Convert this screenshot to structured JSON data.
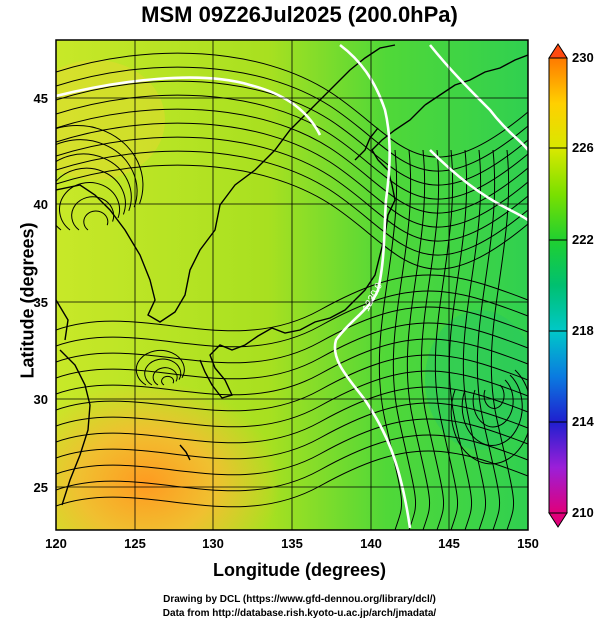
{
  "title": "MSM 09Z26Jul2025 (200.0hPa)",
  "x_axis": {
    "label": "Longitude (degrees)",
    "ticks": [
      "120",
      "125",
      "130",
      "135",
      "140",
      "145",
      "150"
    ],
    "range": [
      120,
      150
    ]
  },
  "y_axis": {
    "label": "Latitude  (degrees)",
    "ticks": [
      "25",
      "30",
      "35",
      "40",
      "45"
    ],
    "range": [
      22.4,
      47.6
    ]
  },
  "colorbar": {
    "ticks": [
      "230",
      "226",
      "222",
      "218",
      "214",
      "210"
    ],
    "range": [
      210,
      230
    ],
    "colors": [
      "#e0007a",
      "#9b1fd8",
      "#1f1fcf",
      "#0a7be0",
      "#00c8c8",
      "#00c070",
      "#20d030",
      "#7ae000",
      "#d8e800",
      "#ffd000",
      "#ff9a00",
      "#ff4a10"
    ]
  },
  "contour": {
    "label": "1230.0"
  },
  "credits": {
    "line1": "Drawing by DCL (https://www.gfd-dennou.org/library/dcl/)",
    "line2": "Data from http://database.rish.kyoto-u.ac.jp/arch/jmadata/"
  },
  "colors": {
    "field_warm": "#ff9a20",
    "field_mid": "#b8e820",
    "field_cool": "#20d050",
    "streamline": "#000000",
    "contour": "#ffffff"
  }
}
